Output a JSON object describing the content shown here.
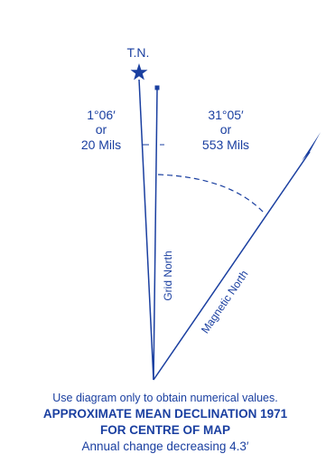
{
  "diagram": {
    "color": "#1a3fa0",
    "true_north": {
      "label": "T.N.",
      "icon": "star-icon"
    },
    "grid_north": {
      "label": "Grid North",
      "angle_degrees": "1°06′",
      "or": "or",
      "angle_mils": "20 Mils"
    },
    "magnetic_north": {
      "label": "Magnetic North",
      "angle_degrees": "31°05′",
      "or": "or",
      "angle_mils": "553 Mils",
      "icon": "half-arrowhead-icon"
    },
    "notes": {
      "usage": "Use diagram only to obtain numerical values.",
      "title_line1": "APPROXIMATE MEAN DECLINATION 1971",
      "title_line2": "FOR CENTRE OF MAP",
      "annual_change": "Annual change decreasing 4.3′"
    }
  }
}
